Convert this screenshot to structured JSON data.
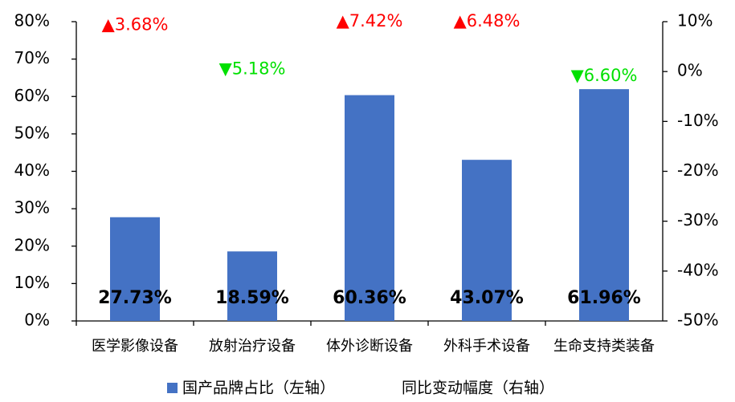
{
  "chart_data": {
    "type": "bar",
    "categories": [
      "医学影像设备",
      "放射治疗设备",
      "体外诊断设备",
      "外科手术设备",
      "生命支持类装备"
    ],
    "series": [
      {
        "name": "国产品牌占比（左轴）",
        "color": "#4472c4",
        "values": [
          27.73,
          18.59,
          60.36,
          43.07,
          61.96
        ],
        "value_labels": [
          "27.73%",
          "18.59%",
          "60.36%",
          "43.07%",
          "61.96%"
        ]
      },
      {
        "name": "同比变动幅度（右轴）",
        "axis": "y2",
        "values": [
          3.68,
          -5.18,
          7.42,
          6.48,
          -6.6
        ],
        "value_labels": [
          "▲3.68%",
          "▼5.18%",
          "▲7.42%",
          "▲6.48%",
          "▼6.60%"
        ],
        "label_colors": [
          "#ff0000",
          "#00e000",
          "#ff0000",
          "#ff0000",
          "#00e000"
        ]
      }
    ],
    "ylim": [
      0,
      80
    ],
    "yticks": [
      {
        "value": 0,
        "label": "0%"
      },
      {
        "value": 10,
        "label": "10%"
      },
      {
        "value": 20,
        "label": "20%"
      },
      {
        "value": 30,
        "label": "30%"
      },
      {
        "value": 40,
        "label": "40%"
      },
      {
        "value": 50,
        "label": "50%"
      },
      {
        "value": 60,
        "label": "60%"
      },
      {
        "value": 70,
        "label": "70%"
      },
      {
        "value": 80,
        "label": "80%"
      }
    ],
    "y2lim": [
      -50,
      10
    ],
    "y2ticks": [
      {
        "value": -50,
        "label": "-50%"
      },
      {
        "value": -40,
        "label": "-40%"
      },
      {
        "value": -30,
        "label": "-30%"
      },
      {
        "value": -20,
        "label": "-20%"
      },
      {
        "value": -10,
        "label": "-10%"
      },
      {
        "value": 0,
        "label": "0%"
      },
      {
        "value": 10,
        "label": "10%"
      }
    ],
    "grid": false
  }
}
